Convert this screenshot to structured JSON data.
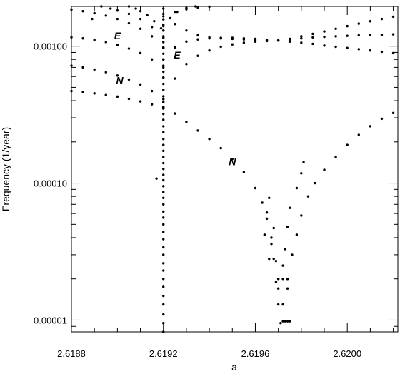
{
  "chart_data": {
    "type": "scatter",
    "title": "",
    "xlabel": "a",
    "ylabel": "Frequency (1/year)",
    "x_scale": "linear",
    "y_scale": "log",
    "xlim": [
      2.6188,
      2.62022
    ],
    "ylim": [
      8.2e-06,
      0.00195
    ],
    "grid": false,
    "legend": "none",
    "marker_color": "#000000",
    "x_ticks": [
      {
        "value": 2.6188,
        "label": "2.6188"
      },
      {
        "value": 2.6192,
        "label": "2.6192"
      },
      {
        "value": 2.6196,
        "label": "2.6196"
      },
      {
        "value": 2.62,
        "label": "2.6200"
      }
    ],
    "x_minor_ticks": [
      2.6189,
      2.619,
      2.6191,
      2.6193,
      2.6194,
      2.6195,
      2.6197,
      2.6198,
      2.6199,
      2.6201,
      2.6202
    ],
    "y_ticks": [
      {
        "value": 1e-05,
        "label": "0.00001"
      },
      {
        "value": 0.0001,
        "label": "0.00010"
      },
      {
        "value": 0.001,
        "label": "0.00100"
      }
    ],
    "annotations": [
      {
        "text": "E",
        "x": 2.619,
        "y": 0.00112
      },
      {
        "text": "E",
        "x": 2.61926,
        "y": 0.00081
      },
      {
        "text": "N",
        "x": 2.61901,
        "y": 0.00053
      },
      {
        "text": "N",
        "x": 2.6195,
        "y": 0.000135
      }
    ],
    "series": [
      {
        "curve": "lowest-branch-left",
        "points": [
          [
            2.6188,
            0.00047
          ],
          [
            2.61885,
            0.000462
          ],
          [
            2.6189,
            0.000452
          ],
          [
            2.61895,
            0.00044
          ],
          [
            2.619,
            0.000428
          ],
          [
            2.61905,
            0.000412
          ],
          [
            2.6191,
            0.000395
          ],
          [
            2.61915,
            0.000376
          ],
          [
            2.6192,
            0.000355
          ]
        ]
      },
      {
        "curve": "N-dip-branch",
        "points": [
          [
            2.6192,
            0.000355
          ],
          [
            2.61925,
            0.000322
          ],
          [
            2.6193,
            0.00028
          ],
          [
            2.61935,
            0.000242
          ],
          [
            2.6194,
            0.00021
          ],
          [
            2.61945,
            0.00018
          ],
          [
            2.6195,
            0.00015
          ],
          [
            2.61955,
            0.00012
          ],
          [
            2.6196,
            9.2e-05
          ],
          [
            2.61963,
            7.2e-05
          ],
          [
            2.61965,
            5.5e-05
          ],
          [
            2.61967,
            4e-05
          ],
          [
            2.61968,
            2.8e-05
          ],
          [
            2.61969,
            1.9e-05
          ],
          [
            2.6197,
            1.3e-05
          ],
          [
            2.61971,
            9.5e-06
          ],
          [
            2.61972,
            1.3e-05
          ],
          [
            2.61974,
            2e-05
          ],
          [
            2.61976,
            3e-05
          ],
          [
            2.61978,
            4.2e-05
          ],
          [
            2.6198,
            5.8e-05
          ],
          [
            2.61983,
            8e-05
          ],
          [
            2.61986,
            0.0001
          ],
          [
            2.6199,
            0.000125
          ],
          [
            2.61995,
            0.000155
          ],
          [
            2.62,
            0.00019
          ],
          [
            2.62005,
            0.000225
          ],
          [
            2.6201,
            0.00026
          ],
          [
            2.62015,
            0.000295
          ],
          [
            2.6202,
            0.000325
          ]
        ]
      },
      {
        "curve": "N-branch-left",
        "points": [
          [
            2.6188,
            0.00072
          ],
          [
            2.61885,
            0.0007
          ],
          [
            2.6189,
            0.000675
          ],
          [
            2.61895,
            0.000645
          ],
          [
            2.619,
            0.00061
          ],
          [
            2.61905,
            0.00057
          ],
          [
            2.6191,
            0.000525
          ],
          [
            2.61915,
            0.00047
          ],
          [
            2.6192,
            0.00041
          ]
        ]
      },
      {
        "curve": "E-branch-left",
        "points": [
          [
            2.6188,
            0.00116
          ],
          [
            2.61885,
            0.00114
          ],
          [
            2.6189,
            0.00111
          ],
          [
            2.61895,
            0.00107
          ],
          [
            2.619,
            0.00102
          ],
          [
            2.61905,
            0.00096
          ],
          [
            2.6191,
            0.00089
          ],
          [
            2.61915,
            0.0008
          ],
          [
            2.6192,
            0.0007
          ]
        ]
      },
      {
        "curve": "E-branch-right",
        "points": [
          [
            2.6192,
            0.00036
          ],
          [
            2.61925,
            0.00058
          ],
          [
            2.6193,
            0.00074
          ],
          [
            2.61935,
            0.00085
          ],
          [
            2.6194,
            0.00093
          ],
          [
            2.61945,
            0.00099
          ],
          [
            2.6195,
            0.00103
          ],
          [
            2.61955,
            0.00106
          ],
          [
            2.6196,
            0.00108
          ],
          [
            2.61965,
            0.00109
          ],
          [
            2.6197,
            0.0011
          ],
          [
            2.61975,
            0.00108
          ],
          [
            2.6198,
            0.00106
          ],
          [
            2.61985,
            0.00104
          ],
          [
            2.6199,
            0.00101
          ],
          [
            2.61995,
            0.00099
          ],
          [
            2.62,
            0.00097
          ],
          [
            2.62005,
            0.00095
          ],
          [
            2.6201,
            0.00093
          ],
          [
            2.62015,
            0.00091
          ],
          [
            2.6202,
            0.00089
          ]
        ]
      },
      {
        "curve": "branch-2-right",
        "points": [
          [
            2.6192,
            0.0008
          ],
          [
            2.61925,
            0.00098
          ],
          [
            2.6193,
            0.00108
          ],
          [
            2.61935,
            0.00112
          ],
          [
            2.6194,
            0.00114
          ],
          [
            2.61945,
            0.00115
          ],
          [
            2.6195,
            0.00115
          ],
          [
            2.61955,
            0.00114
          ],
          [
            2.6196,
            0.00113
          ],
          [
            2.61965,
            0.00111
          ],
          [
            2.6197,
            0.0011
          ],
          [
            2.61975,
            0.00112
          ],
          [
            2.6198,
            0.00114
          ],
          [
            2.61985,
            0.00116
          ],
          [
            2.6199,
            0.00117
          ],
          [
            2.61995,
            0.00118
          ],
          [
            2.62,
            0.00119
          ],
          [
            2.62005,
            0.0012
          ],
          [
            2.6201,
            0.00121
          ],
          [
            2.62015,
            0.00121
          ],
          [
            2.6202,
            0.00122
          ]
        ]
      },
      {
        "curve": "branch-3-right",
        "points": [
          [
            2.6192,
            0.0013
          ],
          [
            2.61925,
            0.00145
          ],
          [
            2.6193,
            0.0013
          ],
          [
            2.61935,
            0.0012
          ],
          [
            2.6194,
            0.00116
          ],
          [
            2.61945,
            0.00114
          ],
          [
            2.6195,
            0.00113
          ],
          [
            2.61955,
            0.00112
          ],
          [
            2.6196,
            0.00111
          ],
          [
            2.61965,
            0.0011
          ],
          [
            2.6197,
            0.0011
          ],
          [
            2.61975,
            0.00113
          ],
          [
            2.6198,
            0.00118
          ],
          [
            2.61985,
            0.00123
          ],
          [
            2.6199,
            0.00128
          ],
          [
            2.61995,
            0.00134
          ],
          [
            2.62,
            0.0014
          ],
          [
            2.62005,
            0.00146
          ],
          [
            2.6201,
            0.00152
          ],
          [
            2.62015,
            0.00158
          ],
          [
            2.6202,
            0.00164
          ]
        ]
      },
      {
        "curve": "branch-3-left",
        "points": [
          [
            2.6188,
            0.00185
          ],
          [
            2.61885,
            0.0018
          ],
          [
            2.6189,
            0.00174
          ],
          [
            2.61895,
            0.00167
          ],
          [
            2.619,
            0.00158
          ],
          [
            2.61905,
            0.00147
          ],
          [
            2.6191,
            0.00134
          ],
          [
            2.61915,
            0.00118
          ],
          [
            2.6192,
            0.00098
          ]
        ]
      },
      {
        "curve": "branch-4-left",
        "points": [
          [
            2.61893,
            0.00195
          ],
          [
            2.61897,
            0.00188
          ],
          [
            2.619,
            0.00182
          ],
          [
            2.61905,
            0.00172
          ],
          [
            2.6191,
            0.00158
          ],
          [
            2.61915,
            0.00138
          ],
          [
            2.6192,
            0.00115
          ]
        ]
      },
      {
        "curve": "branch-5-left",
        "points": [
          [
            2.61905,
            0.00195
          ],
          [
            2.61908,
            0.00188
          ],
          [
            2.6191,
            0.0018
          ],
          [
            2.61913,
            0.00168
          ],
          [
            2.61916,
            0.00152
          ],
          [
            2.61919,
            0.00135
          ]
        ]
      },
      {
        "curve": "branch-4-right",
        "points": [
          [
            2.6192,
            0.0014
          ],
          [
            2.61923,
            0.0016
          ],
          [
            2.61926,
            0.00178
          ],
          [
            2.6193,
            0.0019
          ],
          [
            2.61934,
            0.00195
          ]
        ]
      },
      {
        "curve": "branch-5-right",
        "points": [
          [
            2.6192,
            0.00165
          ],
          [
            2.61925,
            0.00178
          ],
          [
            2.6193,
            0.00186
          ],
          [
            2.61935,
            0.00191
          ],
          [
            2.6194,
            0.00194
          ]
        ]
      },
      {
        "curve": "vertical-resonance",
        "points": [
          [
            2.6192,
            8.2e-06
          ],
          [
            2.6192,
            9.5e-06
          ],
          [
            2.6192,
            1.1e-05
          ],
          [
            2.6192,
            1.3e-05
          ],
          [
            2.6192,
            1.5e-05
          ],
          [
            2.6192,
            1.75e-05
          ],
          [
            2.6192,
            2e-05
          ],
          [
            2.6192,
            2.3e-05
          ],
          [
            2.6192,
            2.6e-05
          ],
          [
            2.6192,
            3e-05
          ],
          [
            2.6192,
            3.4e-05
          ],
          [
            2.6192,
            3.9e-05
          ],
          [
            2.6192,
            4.4e-05
          ],
          [
            2.6192,
            5e-05
          ],
          [
            2.6192,
            5.6e-05
          ],
          [
            2.6192,
            6.2e-05
          ],
          [
            2.6192,
            7e-05
          ],
          [
            2.6192,
            7.8e-05
          ],
          [
            2.6192,
            8.6e-05
          ],
          [
            2.6192,
            9.5e-05
          ],
          [
            2.6192,
            0.000105
          ],
          [
            2.6192,
            0.000115
          ],
          [
            2.6192,
            0.000127
          ],
          [
            2.6192,
            0.00014
          ],
          [
            2.6192,
            0.000155
          ],
          [
            2.6192,
            0.000172
          ],
          [
            2.6192,
            0.00019
          ],
          [
            2.6192,
            0.00021
          ],
          [
            2.6192,
            0.000235
          ],
          [
            2.6192,
            0.00026
          ],
          [
            2.6192,
            0.00029
          ],
          [
            2.6192,
            0.00032
          ],
          [
            2.6192,
            0.00035
          ],
          [
            2.6192,
            0.00039
          ],
          [
            2.6192,
            0.00043
          ],
          [
            2.6192,
            0.00048
          ],
          [
            2.6192,
            0.00053
          ],
          [
            2.6192,
            0.00059
          ],
          [
            2.6192,
            0.00065
          ],
          [
            2.6192,
            0.00072
          ],
          [
            2.6192,
            0.0008
          ],
          [
            2.6192,
            0.00088
          ],
          [
            2.6192,
            0.00097
          ],
          [
            2.6192,
            0.00107
          ],
          [
            2.6192,
            0.00118
          ],
          [
            2.6192,
            0.0013
          ],
          [
            2.6192,
            0.00143
          ],
          [
            2.6192,
            0.00157
          ],
          [
            2.6192,
            0.00172
          ],
          [
            2.6192,
            0.00188
          ]
        ]
      },
      {
        "curve": "scattered-points",
        "points": [
          [
            2.61917,
            0.000108
          ],
          [
            2.61889,
            0.00158
          ],
          [
            2.61966,
            7.8e-05
          ],
          [
            2.61965,
            6.1e-05
          ],
          [
            2.61968,
            4.7e-05
          ],
          [
            2.61967,
            3.6e-05
          ],
          [
            2.61969,
            2.7e-05
          ],
          [
            2.6197,
            2e-05
          ],
          [
            2.61972,
            2.5e-05
          ],
          [
            2.61973,
            3.3e-05
          ],
          [
            2.61974,
            4.8e-05
          ],
          [
            2.61975,
            6.6e-05
          ],
          [
            2.61978,
            9.2e-05
          ],
          [
            2.6198,
            0.000118
          ],
          [
            2.61981,
            0.000142
          ],
          [
            2.61972,
            9.8e-06
          ],
          [
            2.61973,
            9.8e-06
          ],
          [
            2.61974,
            9.8e-06
          ],
          [
            2.61975,
            9.8e-06
          ],
          [
            2.6197,
            2e-05
          ],
          [
            2.61972,
            2e-05
          ],
          [
            2.61974,
            2e-05
          ],
          [
            2.6197,
            1.7e-05
          ],
          [
            2.61974,
            1.7e-05
          ],
          [
            2.61966,
            2.8e-05
          ],
          [
            2.61964,
            4.2e-05
          ]
        ]
      }
    ]
  }
}
